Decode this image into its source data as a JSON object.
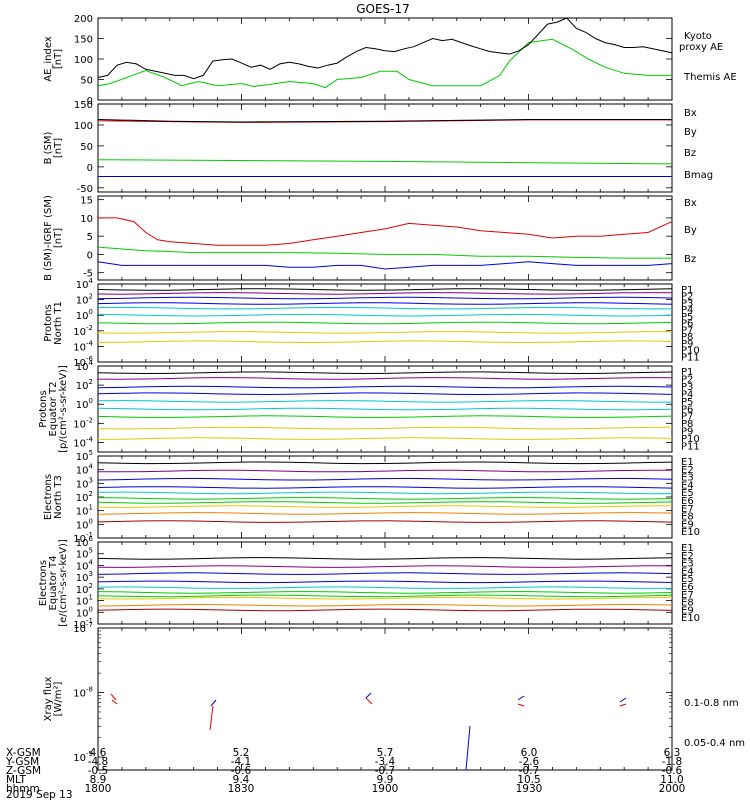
{
  "title": "GOES-17",
  "date_label": "2019 Sep 13",
  "colors": {
    "black": "#000000",
    "red": "#dd0000",
    "green": "#00cc00",
    "blue": "#0000dd",
    "cyan": "#00c8c8",
    "yellow": "#e6c800",
    "orange": "#f08000",
    "purple": "#800080",
    "darkred": "#a00000"
  },
  "orbit": {
    "row_labels": [
      "X-GSM",
      "Y-GSM",
      "Z-GSM",
      "MLT",
      "hhmm"
    ],
    "columns": [
      [
        "4.6",
        "-4.8",
        "-0.5",
        "8.9",
        "1800"
      ],
      [
        "5.2",
        "-4.1",
        "-0.6",
        "9.4",
        "1830"
      ],
      [
        "5.7",
        "-3.4",
        "-0.7",
        "9.9",
        "1900"
      ],
      [
        "6.0",
        "-2.6",
        "-0.7",
        "10.5",
        "1930"
      ],
      [
        "6.3",
        "-1.8",
        "-0.6",
        "11.0",
        "2000"
      ]
    ]
  },
  "chart_data": [
    {
      "type": "line",
      "id": "ae",
      "ylabel": [
        "AE_index",
        "[nT]"
      ],
      "ylim": [
        0,
        200
      ],
      "yticks": [
        "0",
        "50",
        "100",
        "150",
        "200"
      ],
      "x_range": [
        "1800",
        "2000"
      ],
      "series": [
        {
          "name": "Kyoto proxy AE",
          "color": "green",
          "x": [
            0,
            5,
            12,
            20,
            28,
            35,
            42,
            50,
            60,
            65,
            72,
            80,
            90,
            95,
            100,
            110,
            118,
            125,
            130,
            140,
            150,
            160,
            168,
            172,
            180,
            190,
            198,
            205,
            212,
            220,
            230,
            240
          ],
          "values": [
            35,
            40,
            55,
            72,
            55,
            35,
            45,
            35,
            40,
            33,
            38,
            45,
            40,
            30,
            50,
            55,
            70,
            70,
            50,
            35,
            35,
            35,
            60,
            95,
            140,
            148,
            125,
            100,
            80,
            65,
            60,
            60
          ]
        },
        {
          "name": "Themis AE",
          "color": "black",
          "x": [
            0,
            4,
            8,
            12,
            16,
            20,
            24,
            28,
            32,
            36,
            40,
            44,
            48,
            52,
            56,
            60,
            64,
            68,
            72,
            76,
            80,
            84,
            88,
            92,
            96,
            100,
            104,
            108,
            112,
            116,
            120,
            124,
            128,
            132,
            136,
            140,
            144,
            148,
            152,
            156,
            160,
            164,
            168,
            172,
            176,
            180,
            184,
            188,
            192,
            196,
            200,
            204,
            208,
            212,
            216,
            220,
            224,
            228,
            232,
            236,
            240
          ],
          "values": [
            55,
            60,
            85,
            92,
            88,
            75,
            70,
            65,
            60,
            60,
            52,
            60,
            95,
            98,
            100,
            90,
            80,
            85,
            75,
            88,
            92,
            88,
            82,
            78,
            85,
            90,
            105,
            118,
            128,
            125,
            120,
            118,
            125,
            130,
            140,
            150,
            145,
            148,
            140,
            132,
            125,
            118,
            115,
            112,
            120,
            135,
            160,
            185,
            190,
            200,
            175,
            165,
            150,
            140,
            135,
            128,
            128,
            130,
            125,
            120,
            115
          ]
        }
      ]
    },
    {
      "type": "line",
      "id": "bsm",
      "ylabel": [
        "B (SM)",
        "[nT]"
      ],
      "ylim": [
        -60,
        150
      ],
      "yticks": [
        "-50",
        "0",
        "50",
        "100",
        "150"
      ],
      "series": [
        {
          "name": "Bx",
          "color": "blue",
          "x": [
            0,
            240
          ],
          "values": [
            -23,
            -23
          ]
        },
        {
          "name": "By",
          "color": "green",
          "x": [
            0,
            120,
            240
          ],
          "values": [
            17,
            13,
            7
          ]
        },
        {
          "name": "Bz",
          "color": "red",
          "x": [
            0,
            30,
            60,
            120,
            180,
            240
          ],
          "values": [
            110,
            108,
            106,
            108,
            112,
            112
          ]
        },
        {
          "name": "Bmag",
          "color": "black",
          "x": [
            0,
            30,
            60,
            120,
            180,
            240
          ],
          "values": [
            113,
            109,
            107,
            109,
            113,
            113
          ]
        }
      ]
    },
    {
      "type": "line",
      "id": "bdiff",
      "ylabel": [
        "B (SM)-IGRF (SM)",
        "[nT]"
      ],
      "ylim": [
        -7,
        16
      ],
      "yticks": [
        "-5",
        "0",
        "5",
        "10",
        "15"
      ],
      "series": [
        {
          "name": "Bx",
          "color": "blue",
          "x": [
            0,
            10,
            20,
            30,
            40,
            50,
            60,
            70,
            80,
            90,
            100,
            110,
            120,
            130,
            140,
            150,
            160,
            170,
            180,
            190,
            200,
            210,
            220,
            230,
            240
          ],
          "values": [
            -2,
            -3,
            -3,
            -3,
            -3,
            -3,
            -3,
            -3,
            -3.5,
            -3.5,
            -3,
            -3,
            -4,
            -3.5,
            -3,
            -3,
            -3,
            -2.5,
            -2,
            -2.5,
            -3,
            -3,
            -3,
            -3,
            -2.5
          ]
        },
        {
          "name": "By",
          "color": "green",
          "x": [
            0,
            10,
            20,
            30,
            40,
            60,
            80,
            100,
            120,
            140,
            160,
            180,
            200,
            220,
            240
          ],
          "values": [
            2,
            1.5,
            1,
            0.8,
            0.5,
            0.5,
            0.5,
            0.3,
            0,
            0,
            -0.5,
            -0.5,
            -0.8,
            -1,
            -1
          ]
        },
        {
          "name": "Bz",
          "color": "red",
          "x": [
            0,
            8,
            15,
            20,
            25,
            30,
            40,
            50,
            60,
            70,
            80,
            90,
            100,
            110,
            120,
            130,
            140,
            150,
            160,
            170,
            180,
            190,
            200,
            210,
            220,
            230,
            240
          ],
          "values": [
            10,
            10,
            9,
            6,
            4,
            3.5,
            3,
            2.5,
            2.5,
            2.5,
            3,
            4,
            5,
            6,
            7,
            8.5,
            8,
            7.5,
            6.5,
            6,
            5.5,
            4.5,
            5,
            5,
            5.5,
            6,
            9
          ]
        }
      ]
    },
    {
      "type": "line",
      "id": "protons_t1",
      "scale": "log",
      "ylabel": [
        "Protons",
        "North T1"
      ],
      "ylim_exp": [
        -6,
        4
      ],
      "yticks_exp": [
        -6,
        -4,
        -2,
        0,
        2,
        4
      ],
      "channels": [
        {
          "name": "P1",
          "color": "black",
          "value_exp": 3.3
        },
        {
          "name": "P2",
          "color": "purple",
          "value_exp": 2.8
        },
        {
          "name": "P3",
          "color": "blue",
          "value_exp": 2.2
        },
        {
          "name": "P4",
          "color": "blue",
          "value_exp": 1.5
        },
        {
          "name": "P5",
          "color": "cyan",
          "value_exp": 0.9
        },
        {
          "name": "P6",
          "color": "cyan",
          "value_exp": 0
        },
        {
          "name": "P7",
          "color": "green",
          "value_exp": -1
        },
        {
          "name": "P8",
          "color": "yellow",
          "value_exp": -2.2
        },
        {
          "name": "P9",
          "color": "yellow",
          "value_exp": -3.4
        },
        {
          "name": "P10",
          "color": "orange",
          "value_exp": -10
        },
        {
          "name": "P11",
          "color": "red",
          "value_exp": -10
        }
      ]
    },
    {
      "type": "line",
      "id": "protons_t2",
      "scale": "log",
      "ylabel": [
        "Protons",
        "Equator T2",
        "[p/(cm²-s-sr-keV)]"
      ],
      "ylim_exp": [
        -5,
        4
      ],
      "yticks_exp": [
        -4,
        -2,
        0,
        2,
        4
      ],
      "channels": [
        {
          "name": "P1",
          "color": "black",
          "value_exp": 3.3
        },
        {
          "name": "P2",
          "color": "purple",
          "value_exp": 2.7
        },
        {
          "name": "P3",
          "color": "blue",
          "value_exp": 1.8
        },
        {
          "name": "P4",
          "color": "blue",
          "value_exp": 1.1
        },
        {
          "name": "P5",
          "color": "cyan",
          "value_exp": 0.3
        },
        {
          "name": "P6",
          "color": "cyan",
          "value_exp": -0.5
        },
        {
          "name": "P7",
          "color": "green",
          "value_exp": -1.3
        },
        {
          "name": "P8",
          "color": "yellow",
          "value_exp": -2.5
        },
        {
          "name": "P9",
          "color": "yellow",
          "value_exp": -3.6
        },
        {
          "name": "P10",
          "color": "orange",
          "value_exp": -10
        },
        {
          "name": "P11",
          "color": "red",
          "value_exp": -10
        }
      ]
    },
    {
      "type": "line",
      "id": "electrons_t3",
      "scale": "log",
      "ylabel": [
        "Electrons",
        "North T3"
      ],
      "ylim_exp": [
        -1,
        5
      ],
      "yticks_exp": [
        -1,
        0,
        1,
        2,
        3,
        4,
        5
      ],
      "channels": [
        {
          "name": "E1",
          "color": "black",
          "value_exp": 4.5
        },
        {
          "name": "E2",
          "color": "purple",
          "value_exp": 3.9
        },
        {
          "name": "E3",
          "color": "blue",
          "value_exp": 3.3
        },
        {
          "name": "E4",
          "color": "blue",
          "value_exp": 2.7
        },
        {
          "name": "E5",
          "color": "cyan",
          "value_exp": 2.3
        },
        {
          "name": "E6",
          "color": "green",
          "value_exp": 1.9
        },
        {
          "name": "E7",
          "color": "green",
          "value_exp": 1.6
        },
        {
          "name": "E8",
          "color": "yellow",
          "value_exp": 1.3
        },
        {
          "name": "E9",
          "color": "orange",
          "value_exp": 0.8
        },
        {
          "name": "E10",
          "color": "darkred",
          "value_exp": 0.2
        }
      ]
    },
    {
      "type": "line",
      "id": "electrons_t4",
      "scale": "log",
      "ylabel": [
        "Electrons",
        "Equator T4",
        "[e/(cm²-s-sr-keV)]"
      ],
      "ylim_exp": [
        -1,
        6
      ],
      "yticks_exp": [
        -1,
        0,
        1,
        2,
        3,
        4,
        5,
        6
      ],
      "channels": [
        {
          "name": "E1",
          "color": "black",
          "value_exp": 4.6
        },
        {
          "name": "E2",
          "color": "purple",
          "value_exp": 3.9
        },
        {
          "name": "E3",
          "color": "blue",
          "value_exp": 3.3
        },
        {
          "name": "E4",
          "color": "blue",
          "value_exp": 2.6
        },
        {
          "name": "E5",
          "color": "cyan",
          "value_exp": 2.1
        },
        {
          "name": "E6",
          "color": "green",
          "value_exp": 1.7
        },
        {
          "name": "E7",
          "color": "green",
          "value_exp": 1.4
        },
        {
          "name": "E8",
          "color": "yellow",
          "value_exp": 1.2
        },
        {
          "name": "E9",
          "color": "orange",
          "value_exp": 0.6
        },
        {
          "name": "E10",
          "color": "darkred",
          "value_exp": 0.2
        }
      ]
    },
    {
      "type": "line",
      "id": "xray",
      "scale": "log",
      "ylabel": [
        "Xray flux",
        "[W/m²]"
      ],
      "ylim_exp": [
        -9.2,
        -7
      ],
      "yticks_exp": [
        -9,
        -8,
        -7
      ],
      "series": [
        {
          "name": "0.1-0.8 nm",
          "color": "red"
        },
        {
          "name": "0.05-0.4 nm",
          "color": "blue"
        }
      ]
    }
  ]
}
